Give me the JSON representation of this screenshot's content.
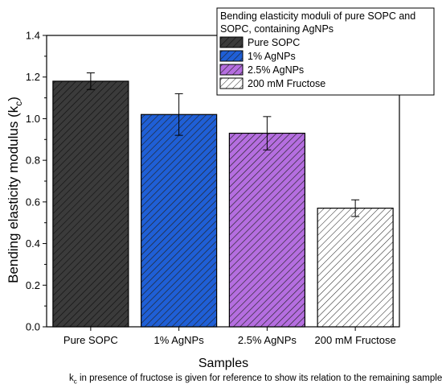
{
  "chart_data": {
    "type": "bar",
    "title": "",
    "xlabel": "Samples",
    "ylabel_main": "Bending elasticity modulus (k",
    "ylabel_sub": "c",
    "ylabel_close": ")",
    "categories": [
      "Pure SOPC",
      "1% AgNPs",
      "2.5% AgNPs",
      "200 mM Fructose"
    ],
    "values": [
      1.18,
      1.02,
      0.93,
      0.57
    ],
    "errors": [
      0.04,
      0.1,
      0.08,
      0.04
    ],
    "colors": [
      "#3b3b3b",
      "#1f5fd6",
      "#b56ee0",
      "#ffffff"
    ],
    "ylim": [
      0.0,
      1.4
    ],
    "yticks": [
      "0.0",
      "0.2",
      "0.4",
      "0.6",
      "0.8",
      "1.0",
      "1.2",
      "1.4"
    ],
    "pattern": "diagonal-hatch",
    "legend": {
      "title_line1": "Bending elasticity moduli of pure SOPC and",
      "title_line2": "SOPC, containing AgNPs",
      "entries": [
        "Pure SOPC",
        "1% AgNPs",
        "2.5% AgNPs",
        "200 mM Fructose"
      ],
      "placement": "top-right"
    }
  },
  "footnote": {
    "symbol": "k",
    "sub": "c",
    "text": " in presence of fructose is given for reference to show its relation to the remaining samples"
  }
}
